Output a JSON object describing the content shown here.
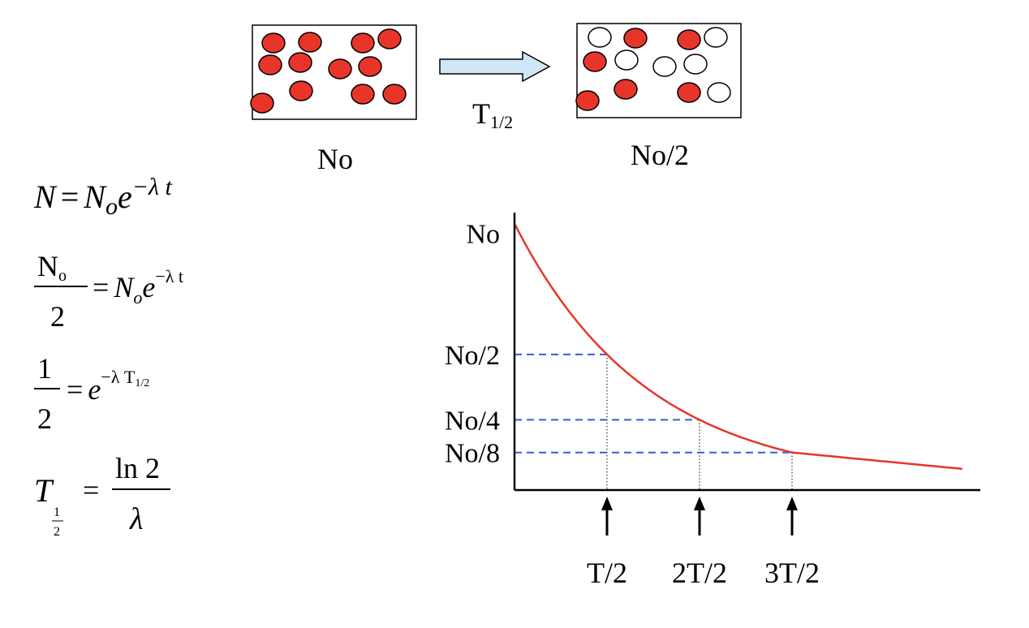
{
  "colors": {
    "particle_active": "#e8352a",
    "particle_decayed": "#ffffff",
    "curve": "#e8352a",
    "guides": "#3a5bd9",
    "arrow_fill": "#cfe6f7"
  },
  "top": {
    "left_box_label": "No",
    "arrow_label_base": "T",
    "arrow_label_sub": "1/2",
    "right_box_label": "No/2"
  },
  "equations": {
    "eq1": {
      "lhs": "N",
      "eq": "=",
      "rhs_base": "N",
      "rhs_sub": "o",
      "rhs_exp_base": "e",
      "rhs_exp": "−λ t"
    },
    "eq2": {
      "num": "N",
      "num_sub": "o",
      "den": "2",
      "eq": "=",
      "rhs_base": "N",
      "rhs_sub": "o",
      "rhs_exp_base": "e",
      "rhs_exp": "−λ t"
    },
    "eq3": {
      "num": "1",
      "den": "2",
      "eq": "=",
      "rhs_exp_base": "e",
      "rhs_exp": "−λ T",
      "rhs_exp_sub": "1/2"
    },
    "eq4": {
      "lhs": "T",
      "lhs_sub_num": "1",
      "lhs_sub_den": "2",
      "eq": "=",
      "num": "ln 2",
      "den": "λ"
    }
  },
  "chart_data": {
    "type": "line",
    "ytick_labels": [
      "No",
      "No/2",
      "No/4",
      "No/8"
    ],
    "xtick_labels": [
      "T/2",
      "2T/2",
      "3T/2"
    ],
    "series": [
      {
        "x": [
          0,
          1,
          2,
          3,
          4
        ],
        "y": [
          1,
          0.5,
          0.25,
          0.125,
          0.07
        ]
      }
    ],
    "guides_x": [
      1,
      2,
      3
    ],
    "guides_y": [
      0.5,
      0.25,
      0.125
    ]
  }
}
